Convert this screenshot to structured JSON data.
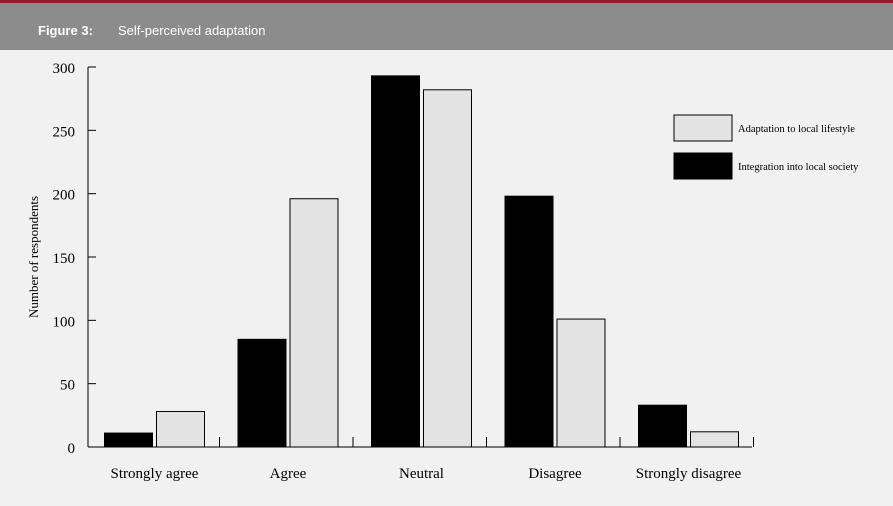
{
  "header": {
    "figure_number": "Figure 3:",
    "title": "Self-perceived adaptation"
  },
  "colors": {
    "header_bg": "#8c8c8c",
    "top_rule": "#8b1d2c",
    "integration": "#000000",
    "adaptation": "#e3e3e3"
  },
  "chart_data": {
    "type": "bar",
    "categories": [
      "Strongly agree",
      "Agree",
      "Neutral",
      "Disagree",
      "Strongly disagree"
    ],
    "series": [
      {
        "name": "Integration into local society",
        "values": [
          11,
          85,
          293,
          198,
          33
        ]
      },
      {
        "name": "Adaptation to local lifestyle",
        "values": [
          28,
          196,
          282,
          101,
          12
        ]
      }
    ],
    "legend_order": [
      "Adaptation to local lifestyle",
      "Integration into local society"
    ],
    "ylabel": "Number of respondents",
    "xlabel": "",
    "ylim": [
      0,
      300
    ],
    "yticks": [
      0,
      50,
      100,
      150,
      200,
      250,
      300
    ],
    "legend_position": "top-right",
    "grid": false
  }
}
